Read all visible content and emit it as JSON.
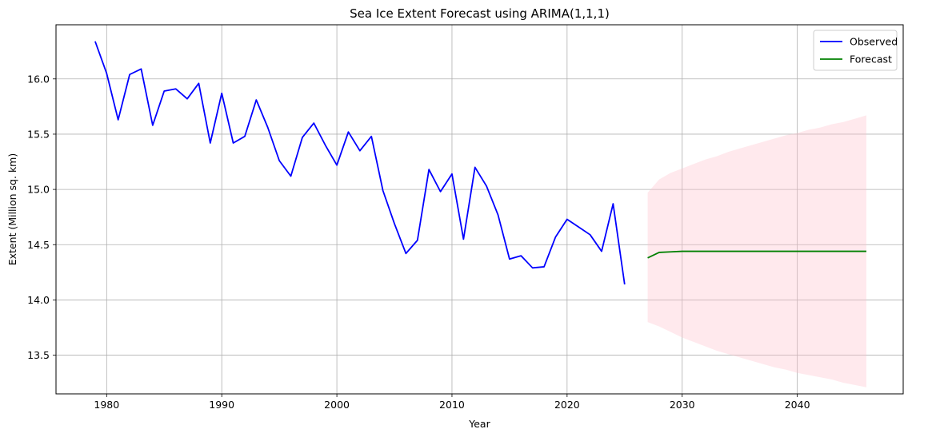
{
  "chart_data": {
    "type": "line",
    "title": "Sea Ice Extent Forecast using ARIMA(1,1,1)",
    "xlabel": "Year",
    "ylabel": "Extent (Million sq. km)",
    "xlim": [
      1975.6,
      2049.2
    ],
    "ylim": [
      13.15,
      16.49
    ],
    "xticks": [
      1980,
      1990,
      2000,
      2010,
      2020,
      2030,
      2040
    ],
    "yticks": [
      13.5,
      14.0,
      14.5,
      15.0,
      15.5,
      16.0
    ],
    "grid": true,
    "legend_position": "top-right",
    "series": [
      {
        "name": "Observed",
        "color": "#0000ff",
        "x": [
          1979,
          1980,
          1981,
          1982,
          1983,
          1984,
          1985,
          1986,
          1987,
          1988,
          1989,
          1990,
          1991,
          1992,
          1993,
          1994,
          1995,
          1996,
          1997,
          1998,
          1999,
          2000,
          2001,
          2002,
          2003,
          2004,
          2005,
          2006,
          2007,
          2008,
          2009,
          2010,
          2011,
          2012,
          2013,
          2014,
          2015,
          2016,
          2017,
          2018,
          2019,
          2020,
          2021,
          2022,
          2023,
          2024,
          2025
        ],
        "y": [
          16.34,
          16.05,
          15.63,
          16.04,
          16.09,
          15.58,
          15.89,
          15.91,
          15.82,
          15.96,
          15.42,
          15.87,
          15.42,
          15.48,
          15.81,
          15.56,
          15.26,
          15.12,
          15.47,
          15.6,
          15.4,
          15.22,
          15.52,
          15.35,
          15.48,
          14.99,
          14.69,
          14.42,
          14.54,
          15.18,
          14.98,
          15.14,
          14.55,
          15.2,
          15.03,
          14.77,
          14.37,
          14.4,
          14.29,
          14.3,
          14.57,
          14.73,
          14.66,
          14.59,
          14.44,
          14.87,
          14.14
        ]
      },
      {
        "name": "Forecast",
        "color": "#008000",
        "x": [
          2027,
          2028,
          2029,
          2030,
          2031,
          2032,
          2033,
          2034,
          2035,
          2036,
          2037,
          2038,
          2039,
          2040,
          2041,
          2042,
          2043,
          2044,
          2045,
          2046
        ],
        "y": [
          14.38,
          14.43,
          14.435,
          14.44,
          14.44,
          14.44,
          14.44,
          14.44,
          14.44,
          14.44,
          14.44,
          14.44,
          14.44,
          14.44,
          14.44,
          14.44,
          14.44,
          14.44,
          14.44,
          14.44
        ],
        "lower": [
          13.8,
          13.76,
          13.71,
          13.66,
          13.62,
          13.58,
          13.54,
          13.51,
          13.48,
          13.45,
          13.42,
          13.39,
          13.37,
          13.34,
          13.32,
          13.3,
          13.28,
          13.25,
          13.23,
          13.21
        ],
        "upper": [
          14.97,
          15.09,
          15.15,
          15.19,
          15.23,
          15.27,
          15.3,
          15.34,
          15.37,
          15.4,
          15.43,
          15.46,
          15.49,
          15.51,
          15.54,
          15.56,
          15.59,
          15.61,
          15.64,
          15.67
        ]
      }
    ],
    "band_color": "#ffc0cb"
  }
}
